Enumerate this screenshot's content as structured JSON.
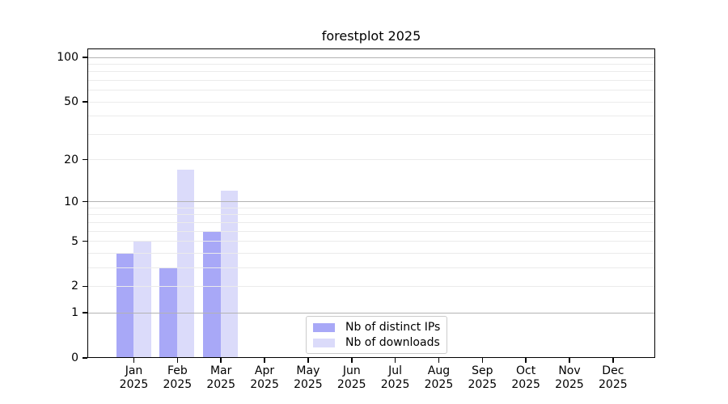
{
  "figure": {
    "background": "#ffffff"
  },
  "chart_data": {
    "type": "bar",
    "title": "forestplot 2025",
    "xlabel": "",
    "ylabel": "",
    "categories": [
      "Jan 2025",
      "Feb 2025",
      "Mar 2025",
      "Apr 2025",
      "May 2025",
      "Jun 2025",
      "Jul 2025",
      "Aug 2025",
      "Sep 2025",
      "Oct 2025",
      "Nov 2025",
      "Dec 2025"
    ],
    "series": [
      {
        "name": "Nb of distinct IPs",
        "color": "#a8a8f7",
        "values": [
          4,
          3,
          6,
          0,
          0,
          0,
          0,
          0,
          0,
          0,
          0,
          0
        ]
      },
      {
        "name": "Nb of downloads",
        "color": "#dbdbfa",
        "values": [
          5,
          17,
          12,
          0,
          0,
          0,
          0,
          0,
          0,
          0,
          0,
          0
        ]
      }
    ],
    "y_axis": {
      "scale": "log1p",
      "tick_values": [
        0,
        1,
        2,
        5,
        10,
        20,
        50,
        100
      ],
      "major_gridlines": [
        1,
        10,
        100
      ],
      "minor_gridlines": [
        2,
        3,
        4,
        5,
        6,
        7,
        8,
        9,
        20,
        30,
        40,
        50,
        60,
        70,
        80,
        90
      ],
      "ylim": [
        0,
        115
      ],
      "grid_major_color": "#b3b3b3",
      "grid_minor_color": "#ebebeb"
    },
    "legend": {
      "position": "lower center"
    }
  }
}
